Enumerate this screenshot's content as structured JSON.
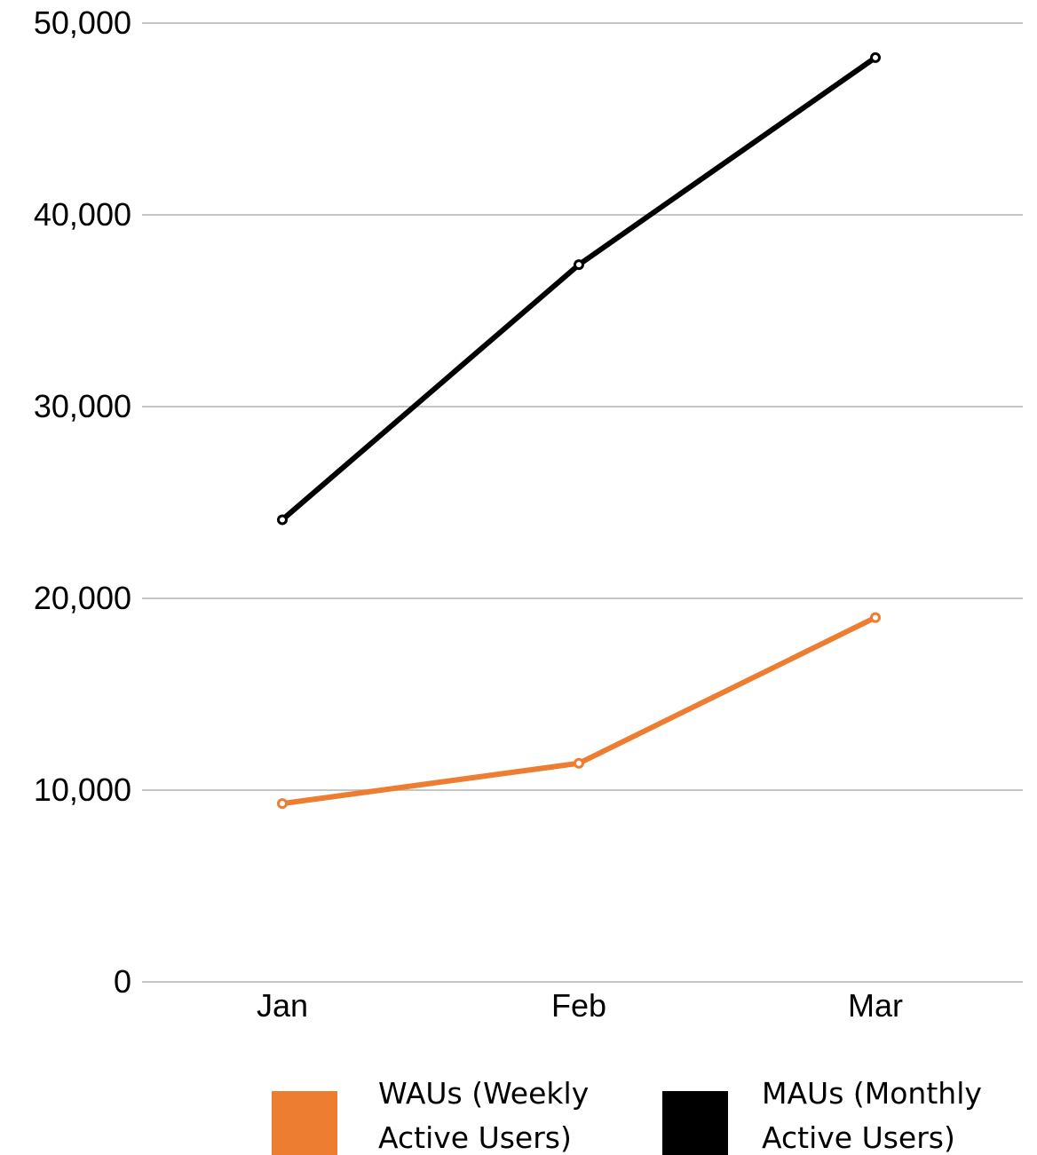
{
  "chart_data": {
    "type": "line",
    "title": "",
    "xlabel": "",
    "ylabel": "",
    "categories": [
      "Jan",
      "Feb",
      "Mar"
    ],
    "ylim": [
      0,
      50000
    ],
    "y_ticks": [
      0,
      10000,
      20000,
      30000,
      40000,
      50000
    ],
    "y_tick_labels": [
      "0",
      "10,000",
      "20,000",
      "30,000",
      "40,000",
      "50,000"
    ],
    "grid": true,
    "legend_position": "bottom",
    "series": [
      {
        "name": "WAUs (Weekly Active Users)",
        "legend_lines": [
          "WAUs (Weekly",
          "Active Users)"
        ],
        "color": "#ed7d31",
        "values": [
          9300,
          11400,
          19000
        ]
      },
      {
        "name": "MAUs (Monthly Active Users)",
        "legend_lines": [
          "MAUs (Monthly",
          "Active Users)"
        ],
        "color": "#000000",
        "values": [
          24100,
          37400,
          48200
        ]
      }
    ]
  }
}
